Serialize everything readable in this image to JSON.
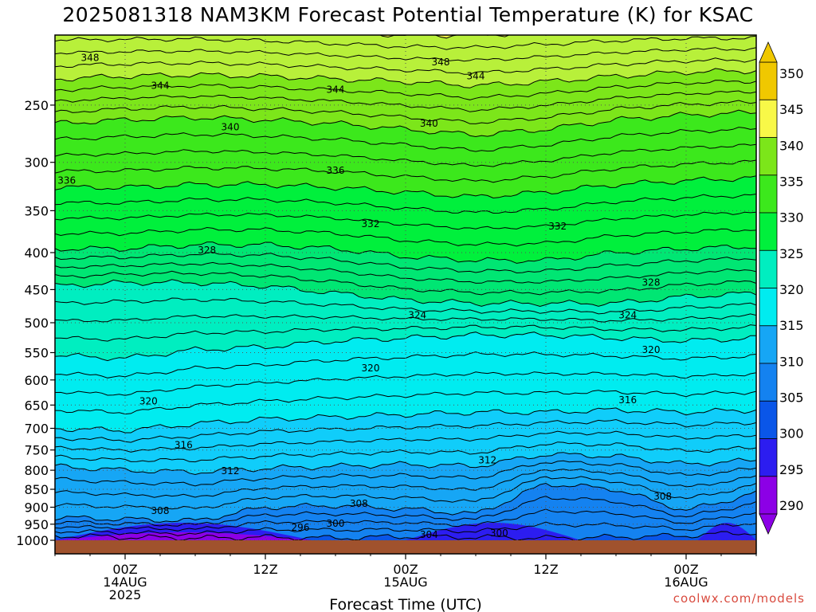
{
  "header": {
    "title": "2025081318 NAM3KM Forecast Potential Temperature (K) for KSAC"
  },
  "footer": {
    "xlabel": "Forecast Time (UTC)",
    "watermark": "coolwx.com/models"
  },
  "colors": {
    "ground": "#a0522d",
    "contour_line": "#000000",
    "grid": "#555555",
    "bands": [
      "#8c00e6",
      "#2c1df0",
      "#0024d8",
      "#0a56e8",
      "#1482f0",
      "#16a6f5",
      "#10cdfa",
      "#00ecf0",
      "#00eec0",
      "#00e673",
      "#00f03c",
      "#3ce81c",
      "#7ce61a",
      "#b8f03a",
      "#f8f848",
      "#f0c800"
    ]
  },
  "chart_data": {
    "type": "heatmap",
    "title": "2025081318 NAM3KM Forecast Potential Temperature (K) for KSAC",
    "xlabel": "Forecast Time (UTC)",
    "ylabel": "",
    "x_range_hours": [
      0,
      60
    ],
    "x_ticks": [
      {
        "hour": 6,
        "lines": [
          "00Z",
          "14AUG",
          "2025"
        ]
      },
      {
        "hour": 18,
        "lines": [
          "12Z",
          "",
          ""
        ]
      },
      {
        "hour": 30,
        "lines": [
          "00Z",
          "15AUG",
          ""
        ]
      },
      {
        "hour": 42,
        "lines": [
          "12Z",
          "",
          ""
        ]
      },
      {
        "hour": 54,
        "lines": [
          "00Z",
          "16AUG",
          ""
        ]
      }
    ],
    "y_range_hPa": [
      1000,
      200
    ],
    "y_scale": "log",
    "y_ticks": [
      250,
      300,
      350,
      400,
      450,
      500,
      550,
      600,
      650,
      700,
      750,
      800,
      850,
      900,
      950,
      1000
    ],
    "grid": true,
    "colorbar": {
      "levels": [
        290,
        295,
        300,
        305,
        310,
        315,
        320,
        325,
        330,
        335,
        340,
        345,
        350
      ],
      "labels": [
        "350",
        "345",
        "340",
        "335",
        "330",
        "325",
        "320",
        "315",
        "310",
        "305",
        "300",
        "295",
        "290"
      ],
      "units": "K"
    },
    "profile": {
      "hours": [
        0,
        6,
        12,
        18,
        24,
        30,
        36,
        42,
        48,
        54,
        60
      ],
      "height_level_hPa_by_hour_and_theta": {
        "levels_K": [
          300,
          305,
          310,
          315,
          320,
          325,
          330,
          335,
          340,
          345,
          350
        ],
        "rows": [
          [
            985,
            930,
            790,
            700,
            555,
            445,
            395,
            325,
            265,
            230,
            195
          ],
          [
            990,
            935,
            800,
            705,
            560,
            440,
            395,
            325,
            262,
            228,
            195
          ],
          [
            993,
            940,
            805,
            690,
            545,
            440,
            390,
            322,
            260,
            227,
            195
          ],
          [
            990,
            900,
            795,
            680,
            540,
            445,
            390,
            322,
            262,
            228,
            196
          ],
          [
            993,
            895,
            790,
            675,
            530,
            455,
            395,
            325,
            265,
            230,
            198
          ],
          [
            988,
            905,
            785,
            670,
            525,
            465,
            405,
            330,
            270,
            232,
            200
          ],
          [
            990,
            920,
            790,
            665,
            520,
            470,
            410,
            335,
            275,
            235,
            200
          ],
          [
            993,
            835,
            760,
            665,
            520,
            470,
            410,
            330,
            270,
            232,
            198
          ],
          [
            990,
            850,
            765,
            660,
            525,
            470,
            400,
            322,
            262,
            228,
            196
          ],
          [
            985,
            910,
            785,
            665,
            530,
            460,
            395,
            318,
            258,
            225,
            195
          ],
          [
            975,
            860,
            775,
            660,
            525,
            455,
            392,
            315,
            256,
            224,
            195
          ]
        ]
      }
    },
    "contour_labels": [
      {
        "value": "348",
        "hour": 3,
        "p": 215
      },
      {
        "value": "348",
        "hour": 33,
        "p": 218
      },
      {
        "value": "344",
        "hour": 36,
        "p": 228
      },
      {
        "value": "344",
        "hour": 9,
        "p": 235
      },
      {
        "value": "344",
        "hour": 24,
        "p": 238
      },
      {
        "value": "340",
        "hour": 15,
        "p": 268
      },
      {
        "value": "340",
        "hour": 32,
        "p": 265
      },
      {
        "value": "336",
        "hour": 1,
        "p": 318
      },
      {
        "value": "336",
        "hour": 24,
        "p": 308
      },
      {
        "value": "332",
        "hour": 27,
        "p": 365
      },
      {
        "value": "332",
        "hour": 43,
        "p": 368
      },
      {
        "value": "328",
        "hour": 13,
        "p": 397
      },
      {
        "value": "328",
        "hour": 51,
        "p": 440
      },
      {
        "value": "324",
        "hour": 31,
        "p": 488
      },
      {
        "value": "324",
        "hour": 49,
        "p": 488
      },
      {
        "value": "320",
        "hour": 8,
        "p": 642
      },
      {
        "value": "320",
        "hour": 27,
        "p": 578
      },
      {
        "value": "320",
        "hour": 51,
        "p": 545
      },
      {
        "value": "316",
        "hour": 49,
        "p": 640
      },
      {
        "value": "316",
        "hour": 11,
        "p": 738
      },
      {
        "value": "312",
        "hour": 15,
        "p": 802
      },
      {
        "value": "312",
        "hour": 37,
        "p": 775
      },
      {
        "value": "308",
        "hour": 52,
        "p": 870
      },
      {
        "value": "308",
        "hour": 26,
        "p": 890
      },
      {
        "value": "308",
        "hour": 9,
        "p": 910
      },
      {
        "value": "300",
        "hour": 24,
        "p": 948
      },
      {
        "value": "300",
        "hour": 38,
        "p": 978
      },
      {
        "value": "296",
        "hour": 21,
        "p": 960
      },
      {
        "value": "304",
        "hour": 32,
        "p": 982
      }
    ]
  }
}
